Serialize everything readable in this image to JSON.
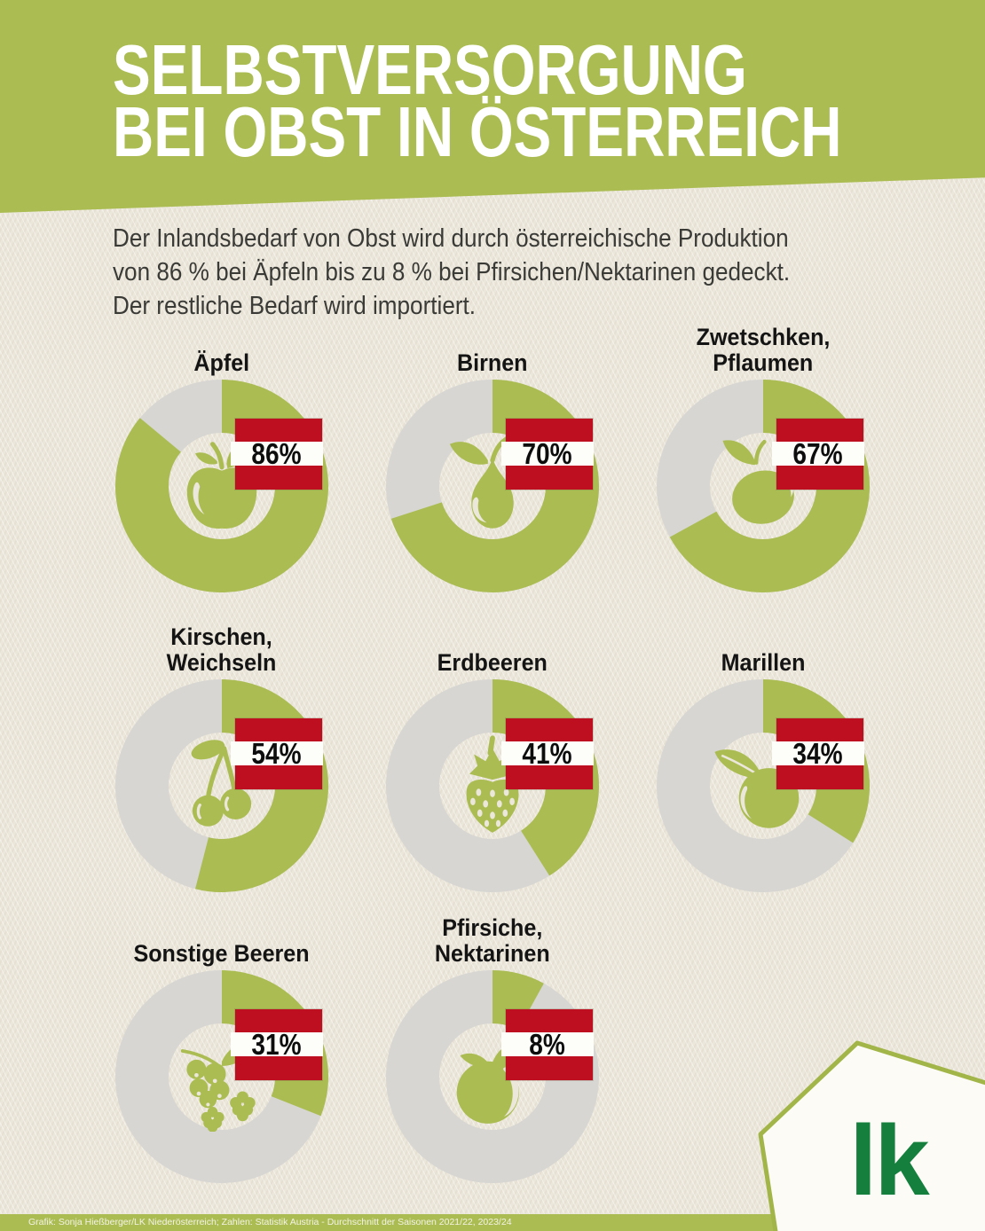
{
  "header": {
    "title_line1": "SELBSTVERSORGUNG",
    "title_line2": "BEI OBST IN ÖSTERREICH"
  },
  "intro": {
    "line1": "Der Inlandsbedarf von Obst wird durch österreichische Produktion",
    "line2": "von 86 % bei Äpfeln bis zu 8 % bei Pfirsichen/Nektarinen gedeckt.",
    "line3": "Der restliche Bedarf wird importiert."
  },
  "colors": {
    "accent_green": "#abbd52",
    "remainder_gray": "#d7d6d2",
    "flag_red": "#bd0f20",
    "background_cream": "#ece7db",
    "logo_green": "#15803e"
  },
  "chart_data": [
    {
      "type": "donut",
      "label": "Äpfel",
      "value_pct": 86,
      "value_label": "86%",
      "icon": "apple",
      "filled_color": "#abbd52",
      "remainder_color": "#d7d6d2",
      "start_angle_deg": 0,
      "direction": "clockwise"
    },
    {
      "type": "donut",
      "label": "Birnen",
      "value_pct": 70,
      "value_label": "70%",
      "icon": "pear",
      "filled_color": "#abbd52",
      "remainder_color": "#d7d6d2",
      "start_angle_deg": 0,
      "direction": "clockwise"
    },
    {
      "type": "donut",
      "label": "Zwetschken, Pflaumen",
      "label_lines": [
        "Zwetschken,",
        "Pflaumen"
      ],
      "value_pct": 67,
      "value_label": "67%",
      "icon": "plum",
      "filled_color": "#abbd52",
      "remainder_color": "#d7d6d2",
      "start_angle_deg": 0,
      "direction": "clockwise"
    },
    {
      "type": "donut",
      "label": "Kirschen, Weichseln",
      "label_lines": [
        "Kirschen,",
        "Weichseln"
      ],
      "value_pct": 54,
      "value_label": "54%",
      "icon": "cherry",
      "filled_color": "#abbd52",
      "remainder_color": "#d7d6d2",
      "start_angle_deg": 0,
      "direction": "clockwise"
    },
    {
      "type": "donut",
      "label": "Erdbeeren",
      "value_pct": 41,
      "value_label": "41%",
      "icon": "strawberry",
      "filled_color": "#abbd52",
      "remainder_color": "#d7d6d2",
      "start_angle_deg": 0,
      "direction": "clockwise"
    },
    {
      "type": "donut",
      "label": "Marillen",
      "value_pct": 34,
      "value_label": "34%",
      "icon": "apricot",
      "filled_color": "#abbd52",
      "remainder_color": "#d7d6d2",
      "start_angle_deg": 0,
      "direction": "clockwise"
    },
    {
      "type": "donut",
      "label": "Sonstige Beeren",
      "value_pct": 31,
      "value_label": "31%",
      "icon": "berries",
      "filled_color": "#abbd52",
      "remainder_color": "#d7d6d2",
      "start_angle_deg": 0,
      "direction": "clockwise"
    },
    {
      "type": "donut",
      "label": "Pfirsiche, Nektarinen",
      "label_lines": [
        "Pfirsiche,",
        "Nektarinen"
      ],
      "value_pct": 8,
      "value_label": "8%",
      "icon": "peach",
      "filled_color": "#abbd52",
      "remainder_color": "#d7d6d2",
      "start_angle_deg": 0,
      "direction": "clockwise"
    }
  ],
  "footer": {
    "credit": "Grafik: Sonja Hießberger/LK Niederösterreich; Zahlen: Statistik Austria - Durchschnitt der Saisonen 2021/22, 2023/24"
  },
  "logo": {
    "text": "lk"
  }
}
